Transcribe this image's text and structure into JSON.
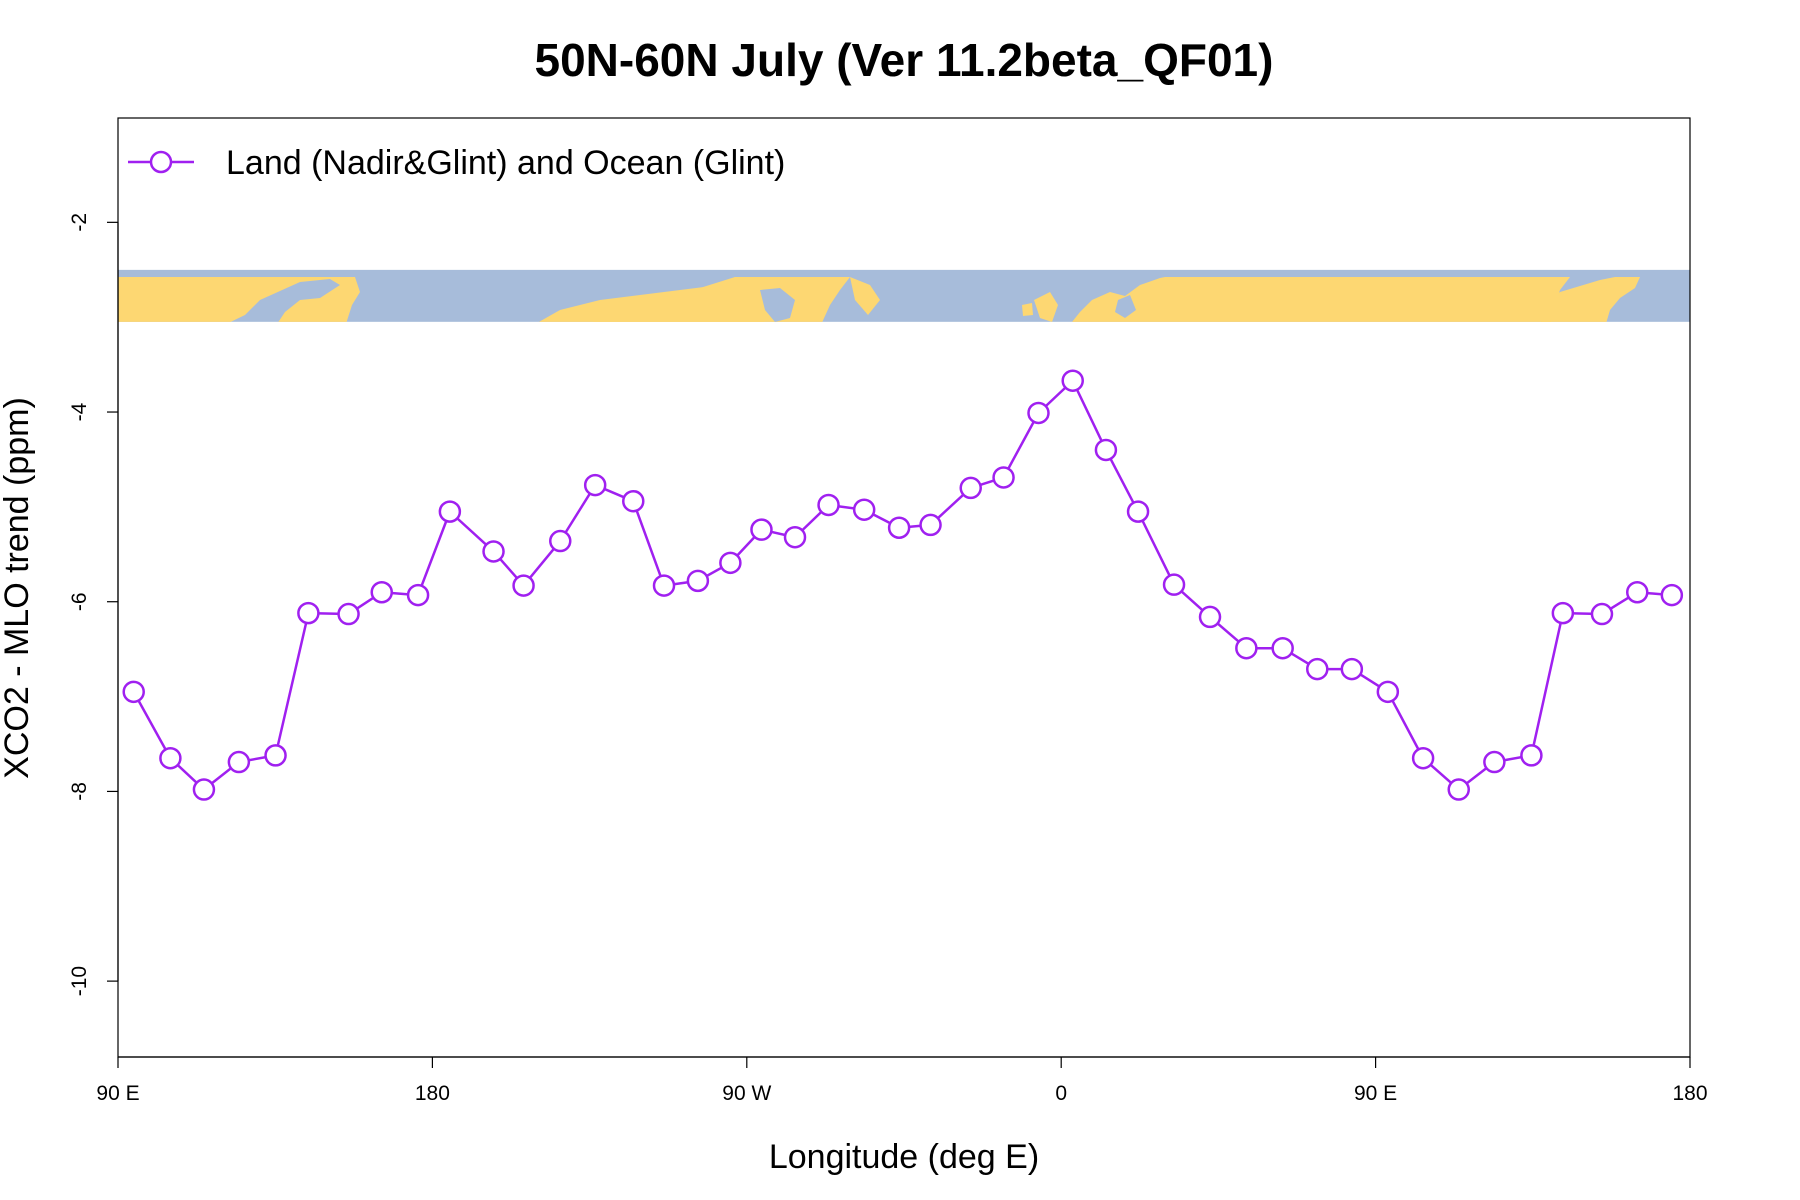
{
  "chart_data": {
    "type": "line",
    "title": "50N-60N July (Ver 11.2beta_QF01)",
    "xlabel": "Longitude (deg E)",
    "ylabel": "XCO2 - MLO trend (ppm)",
    "xlim": [
      90,
      540
    ],
    "ylim": [
      -10.8,
      -0.9
    ],
    "xticks": [
      {
        "value": 90,
        "label": "90 E"
      },
      {
        "value": 180,
        "label": "180"
      },
      {
        "value": 270,
        "label": "90 W"
      },
      {
        "value": 360,
        "label": "0"
      },
      {
        "value": 450,
        "label": "90 E"
      },
      {
        "value": 540,
        "label": "180"
      }
    ],
    "yticks": [
      {
        "value": -2,
        "label": "-2"
      },
      {
        "value": -4,
        "label": "-4"
      },
      {
        "value": -6,
        "label": "-6"
      },
      {
        "value": -8,
        "label": "-8"
      },
      {
        "value": -10,
        "label": "-10"
      }
    ],
    "legend": {
      "position": "top-left",
      "label": "Land (Nadir&Glint) and Ocean (Glint)"
    },
    "map_strip": {
      "y_top": -2.5,
      "y_bottom": -3.05,
      "ocean_color": "#A7BCDA",
      "land_color": "#FDD772"
    },
    "series": [
      {
        "name": "Land (Nadir&Glint) and Ocean (Glint)",
        "color": "#A020F0",
        "x": [
          94.5,
          105,
          114.6,
          124.6,
          135.1,
          144.5,
          156,
          165.5,
          175.9,
          185,
          197.5,
          206.1,
          216.6,
          226.6,
          237.5,
          246.3,
          256,
          265.3,
          274.2,
          283.8,
          293.4,
          303.6,
          313.6,
          322.6,
          334.1,
          343.5,
          353.5,
          363.3,
          372.8,
          382,
          392.3,
          402.6,
          413,
          423.4,
          433.3,
          443.2,
          453.5,
          463.6,
          473.8,
          484,
          494.6,
          503.6,
          514.8,
          524.9,
          534.8
        ],
        "y": [
          -6.95,
          -7.65,
          -7.98,
          -7.69,
          -7.62,
          -6.12,
          -6.13,
          -5.9,
          -5.93,
          -5.05,
          -5.47,
          -5.83,
          -5.36,
          -4.77,
          -4.94,
          -5.83,
          -5.78,
          -5.59,
          -5.24,
          -5.32,
          -4.98,
          -5.03,
          -5.22,
          -5.19,
          -4.8,
          -4.69,
          -4.01,
          -3.67,
          -4.4,
          -5.05,
          -5.82,
          -6.16,
          -6.49,
          -6.49,
          -6.71,
          -6.71,
          -6.95,
          -7.65,
          -7.98,
          -7.69,
          -7.62,
          -6.12,
          -6.13,
          -5.9,
          -5.93
        ]
      }
    ]
  }
}
